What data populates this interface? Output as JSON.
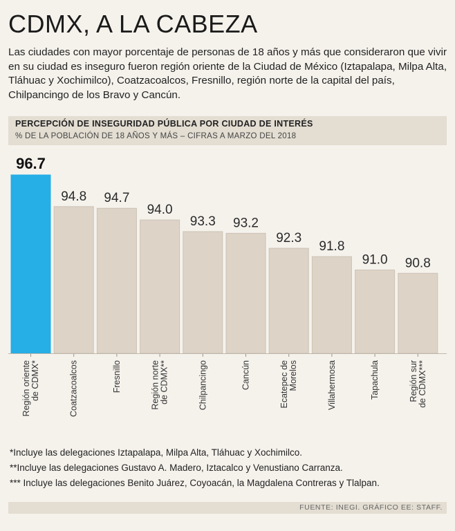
{
  "header": {
    "title": "CDMX, A LA CABEZA",
    "subtitle": "Las ciudades con mayor porcentaje de personas de 18 años y más que consideraron que vivir en su ciudad es inseguro fueron región oriente de la Ciudad de México (Iztapalapa, Milpa Alta, Tláhuac y Xochimilco), Coatzacoalcos, Fresnillo, región norte de la capital del país, Chilpancingo de los Bravo y Cancún."
  },
  "chart_data": {
    "type": "bar",
    "title": "PERCEPCIÓN DE INSEGURIDAD PÚBLICA POR CIUDAD DE INTERÉS",
    "subtitle": "% DE LA POBLACIÓN DE 18 AÑOS Y MÁS – CIFRAS A MARZO DEL 2018",
    "categories": [
      [
        "Región oriente",
        "de CDMX*"
      ],
      [
        "Coatzacoalcos"
      ],
      [
        "Fresnillo"
      ],
      [
        "Región norte",
        "de CDMX**"
      ],
      [
        "Chilpancingo"
      ],
      [
        "Cancún"
      ],
      [
        "Ecatepec de",
        "Morelos"
      ],
      [
        "Villahermosa"
      ],
      [
        "Tapachula"
      ],
      [
        "Región sur",
        "de CDMX***"
      ]
    ],
    "value_labels": [
      "96.7",
      "94.8",
      "94.7",
      "94.0",
      "93.3",
      "93.2",
      "92.3",
      "91.8",
      "91.0",
      "90.8"
    ],
    "values": [
      96.7,
      94.8,
      94.7,
      94.0,
      93.3,
      93.2,
      92.3,
      91.8,
      91.0,
      90.8
    ],
    "highlight_index": 0,
    "ylim": [
      86,
      96.7
    ],
    "colors": {
      "highlight": "#26aee6",
      "bar": "#ddd3c7",
      "bar_edge": "#ccc2b5",
      "label": "#333333"
    }
  },
  "notes": [
    "*Incluye las delegaciones Iztapalapa, Milpa Alta, Tláhuac y Xochimilco.",
    "**Incluye las delegaciones Gustavo A. Madero, Iztacalco y Venustiano Carranza.",
    "*** Incluye las delegaciones Benito Juárez, Coyoacán, la Magdalena Contreras y Tlalpan."
  ],
  "footer": {
    "source": "FUENTE: INEGI. GRÁFICO EE: STAFF."
  }
}
